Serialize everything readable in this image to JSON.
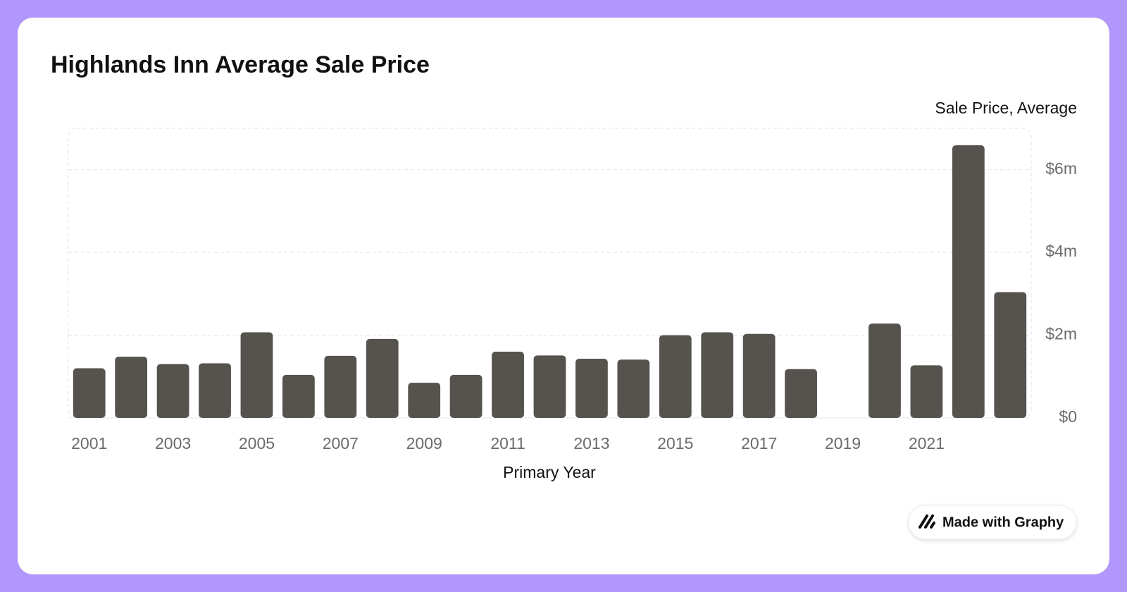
{
  "chart_data": {
    "type": "bar",
    "title": "Highlands Inn Average Sale Price",
    "y_label": "Sale Price, Average",
    "x_label": "Primary Year",
    "categories": [
      "2001",
      null,
      "2003",
      null,
      "2005",
      null,
      "2007",
      null,
      "2009",
      null,
      "2011",
      null,
      "2013",
      null,
      "2015",
      null,
      "2017",
      null,
      "2019",
      null,
      "2021",
      null,
      null
    ],
    "values": [
      1200000,
      1480000,
      1300000,
      1320000,
      2070000,
      1040000,
      1500000,
      1910000,
      850000,
      1040000,
      1600000,
      1510000,
      1430000,
      1410000,
      2000000,
      2070000,
      2030000,
      1180000,
      null,
      2280000,
      1270000,
      6590000,
      3040000
    ],
    "color": "#56534e",
    "ylim": [
      0,
      7000000
    ],
    "yticks": [
      {
        "value": 0,
        "label": "$0"
      },
      {
        "value": 2000000,
        "label": "$2m"
      },
      {
        "value": 4000000,
        "label": "$4m"
      },
      {
        "value": 6000000,
        "label": "$6m"
      }
    ],
    "grid": true
  },
  "badge": "Made with Graphy"
}
